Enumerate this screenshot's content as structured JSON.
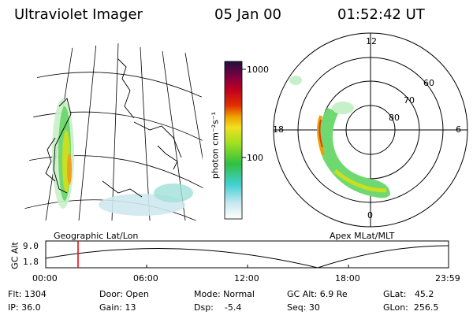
{
  "header": {
    "title": "Ultraviolet Imager",
    "date": "05 Jan 00",
    "time": "01:52:42 UT"
  },
  "colorbar": {
    "unit_label": "photon cm⁻²s⁻¹",
    "ticks": [
      "1000",
      "100"
    ]
  },
  "map_label": "Geographic Lat/Lon",
  "polar": {
    "label": "Apex MLat/MLT",
    "mlt_labels": [
      "12",
      "18",
      "6",
      "0"
    ],
    "lat_labels": [
      "60",
      "70",
      "80"
    ]
  },
  "altitude_plot": {
    "axis_label": "GC Alt",
    "y_ticks": [
      "9.0",
      "1.8"
    ],
    "x_ticks": [
      "00:00",
      "06:00",
      "12:00",
      "18:00",
      "23:59"
    ]
  },
  "status": {
    "flt": "Flt: 1304",
    "ip": "IP: 36.0",
    "door": "Door: Open",
    "gain": "Gain: 13",
    "mode": "Mode: Normal",
    "dsp": "Dsp:    -5.4",
    "gc_alt": "GC Alt: 6.9 Re",
    "seq": "Seq: 30",
    "glat": "GLat:   45.2",
    "glon": "GLon:  256.5"
  }
}
